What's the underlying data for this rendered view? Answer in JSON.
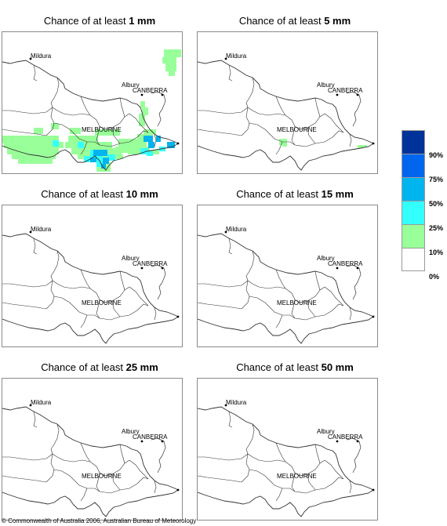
{
  "panels": [
    {
      "prefix": "Chance of at least ",
      "amount": "1 mm"
    },
    {
      "prefix": "Chance of at least ",
      "amount": "5 mm"
    },
    {
      "prefix": "Chance of at least ",
      "amount": "10 mm"
    },
    {
      "prefix": "Chance of at least ",
      "amount": "15 mm"
    },
    {
      "prefix": "Chance of at least ",
      "amount": "25 mm"
    },
    {
      "prefix": "Chance of at least ",
      "amount": "50 mm"
    }
  ],
  "places": {
    "mildura": "Mildura",
    "canberra": "CANBERRA",
    "albury": "Albury",
    "melbourne": "MELBOURNE"
  },
  "legend": {
    "labels": [
      "90%",
      "75%",
      "50%",
      "25%",
      "10%",
      "0%"
    ],
    "colors": [
      "#003399",
      "#0066ee",
      "#00b4ee",
      "#33ffff",
      "#99ff99",
      "#ffffff"
    ]
  },
  "footer": {
    "copyright": "© Commonwealth of Australia 2006, Australian Bureau of Meteorology"
  }
}
